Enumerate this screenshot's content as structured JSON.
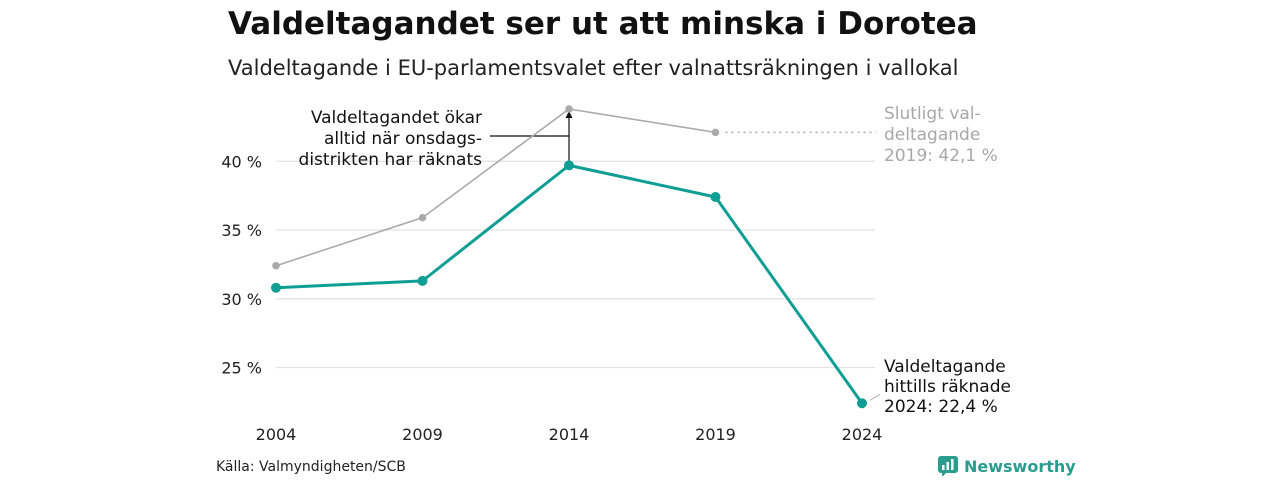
{
  "title": "Valdeltagandet ser ut att minska i Dorotea",
  "subtitle": "Valdeltagande i EU-parlamentsvalet efter valnattsräkningen i vallokal",
  "source": "Källa: Valmyndigheten/SCB",
  "brand": {
    "name": "Newsworthy",
    "icon": "newsworthy-logo-icon"
  },
  "colors": {
    "primary": "#0e9e93",
    "secondary": "#aaaaaa",
    "grid": "#e3e3e3",
    "annotation": "#111111",
    "muted_text": "#a8a8a8"
  },
  "chart_data": {
    "type": "line",
    "x": [
      "2004",
      "2009",
      "2014",
      "2019",
      "2024"
    ],
    "ylim": [
      22,
      45
    ],
    "yticks": [
      25,
      30,
      35,
      40
    ],
    "ytick_labels": [
      "25 %",
      "30 %",
      "35 %",
      "40 %"
    ],
    "grid": true,
    "series": [
      {
        "id": "final",
        "values": [
          32.4,
          35.9,
          43.8,
          42.1,
          null
        ],
        "color": "#aaaaaa"
      },
      {
        "id": "valnatt",
        "values": [
          30.8,
          31.3,
          39.7,
          37.4,
          22.4
        ],
        "color": "#0e9e93"
      }
    ],
    "annotations": {
      "final": [
        "Slutligt val-",
        "deltagande",
        "2019: 42,1 %"
      ],
      "current": [
        "Valdeltagande",
        "hittills räknade",
        "2024: 22,4 %"
      ],
      "note": [
        "Valdeltagandet ökar",
        "alltid när onsdags-",
        "distrikten har räknats"
      ]
    }
  }
}
